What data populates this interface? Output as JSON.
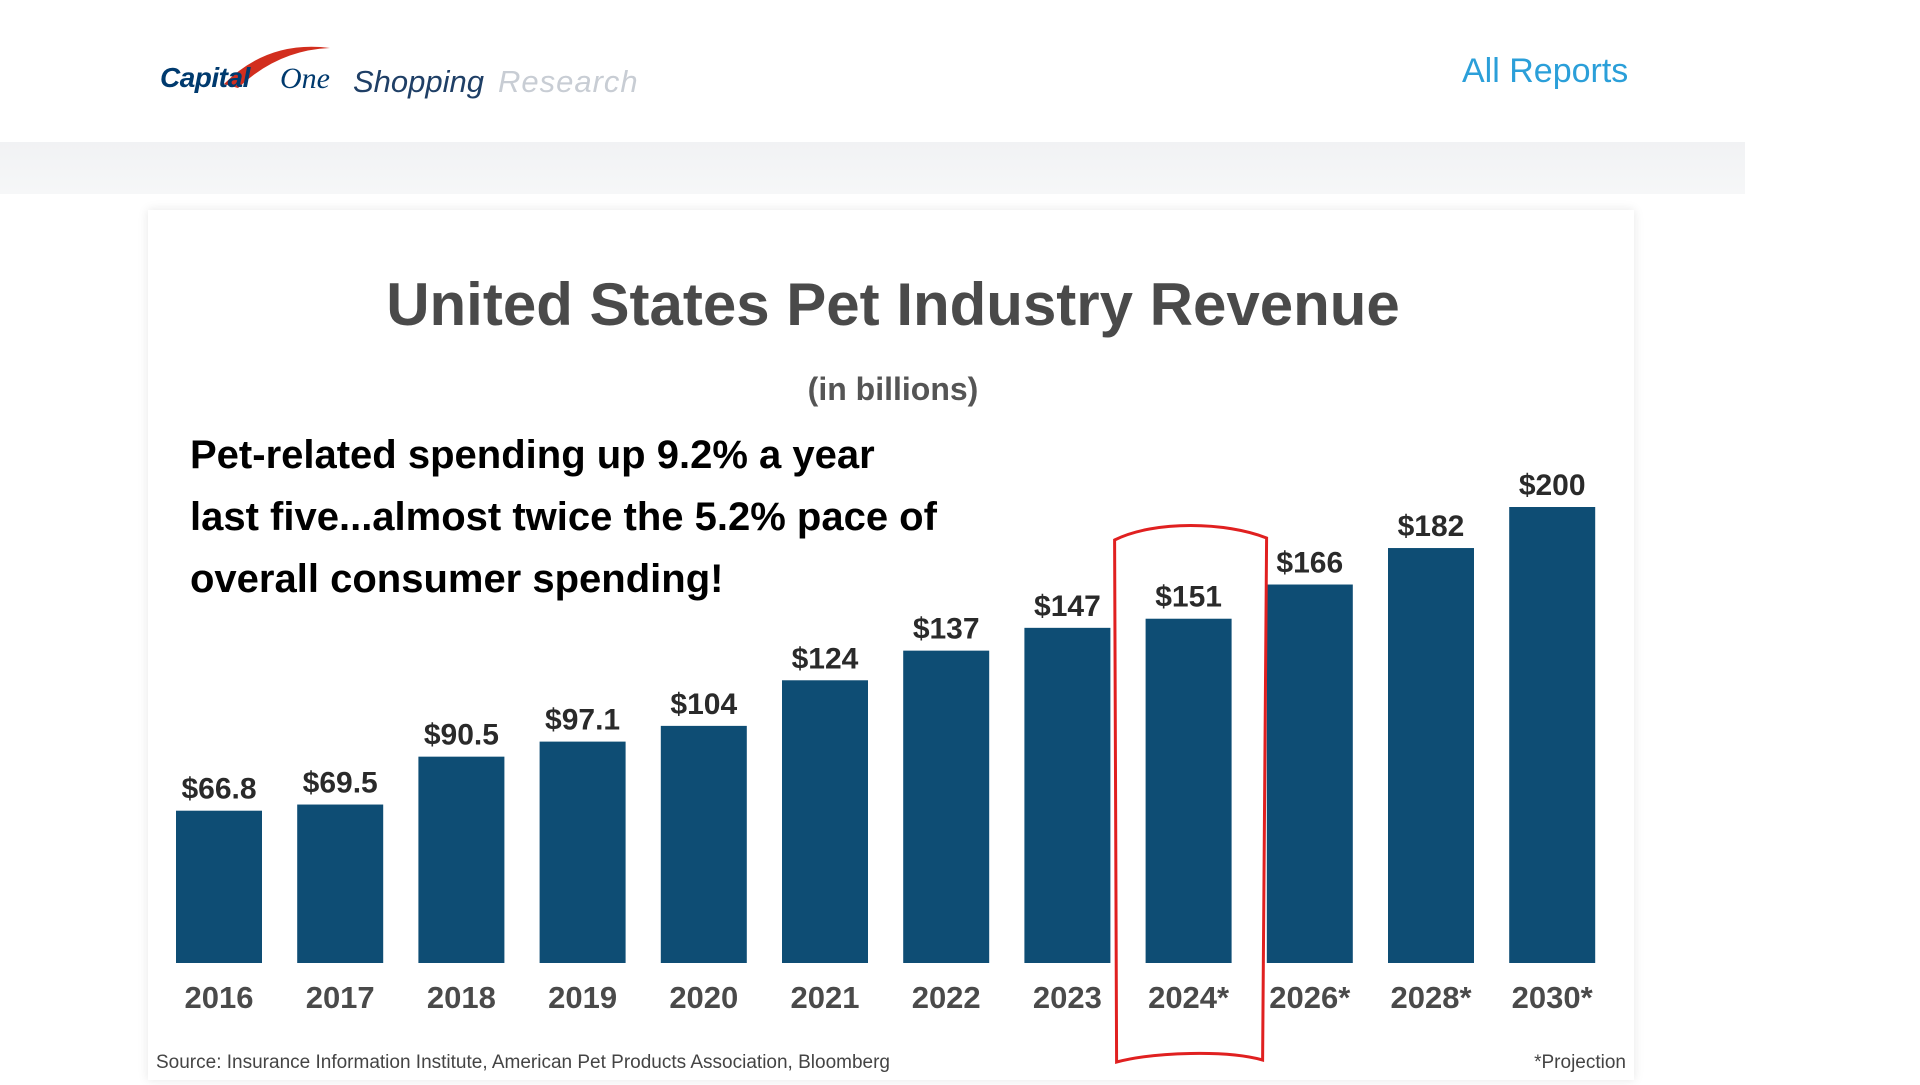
{
  "header": {
    "logo": {
      "capital": "Capital",
      "one": "One",
      "shopping": "Shopping",
      "research": "Research"
    },
    "nav_link": "All Reports"
  },
  "chart_data": {
    "type": "bar",
    "title": "United States Pet Industry Revenue",
    "subtitle": "(in billions)",
    "annotation": [
      "Pet-related spending up 9.2% a year",
      "last five...almost twice the 5.2% pace of",
      "overall consumer spending!"
    ],
    "categories": [
      "2016",
      "2017",
      "2018",
      "2019",
      "2020",
      "2021",
      "2022",
      "2023",
      "2024*",
      "2026*",
      "2028*",
      "2030*"
    ],
    "values": [
      66.8,
      69.5,
      90.5,
      97.1,
      104,
      124,
      137,
      147,
      151,
      166,
      182,
      200
    ],
    "value_labels": [
      "$66.8",
      "$69.5",
      "$90.5",
      "$97.1",
      "$104",
      "$124",
      "$137",
      "$147",
      "$151",
      "$166",
      "$182",
      "$200"
    ],
    "highlight_category": "2024*",
    "source": "Source: Insurance Information Institute, American Pet Products Association, Bloomberg",
    "footnote": "*Projection",
    "bar_color": "#0e4d74",
    "highlight_color": "#e02020",
    "ylim": [
      0,
      200
    ]
  }
}
